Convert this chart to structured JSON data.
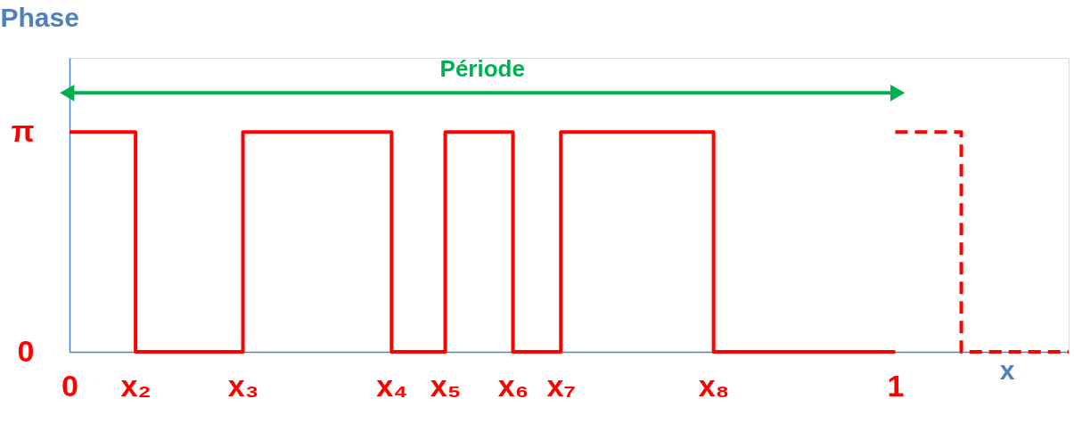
{
  "chart_data": {
    "type": "step",
    "ylabel": "Phase",
    "xlabel": "x",
    "xlim": [
      0,
      1.21
    ],
    "ylim": [
      0,
      4.2
    ],
    "xticks": [
      0,
      {
        "value": 0.08,
        "label": "x₂"
      },
      {
        "value": 0.21,
        "label": "x₃"
      },
      {
        "value": 0.39,
        "label": "x₄"
      },
      {
        "value": 0.455,
        "label": "x₅"
      },
      {
        "value": 0.537,
        "label": "x₆"
      },
      {
        "value": 0.595,
        "label": "x₇"
      },
      {
        "value": 0.78,
        "label": "x₈"
      },
      1
    ],
    "yticks": [
      0,
      {
        "value": 3.14,
        "label": "π"
      }
    ],
    "series": [
      {
        "color": "#ff0000",
        "line_style": "solid",
        "x": [
          0,
          0.08,
          0.21,
          0.39,
          0.455,
          0.537,
          0.595,
          0.78,
          1
        ],
        "values": [
          3.14,
          0,
          3.14,
          0,
          3.14,
          0,
          3.14,
          0,
          0
        ]
      },
      {
        "color": "#ff0000",
        "line_style": "dashed",
        "x": [
          1,
          1.08,
          1.21
        ],
        "values": [
          3.14,
          0,
          0
        ]
      },
      {
        "type": "line",
        "name": "Période",
        "color": "#00b050",
        "marker": "triangle",
        "x": [
          0,
          1
        ],
        "values": [
          3.7,
          3.7
        ]
      }
    ]
  }
}
